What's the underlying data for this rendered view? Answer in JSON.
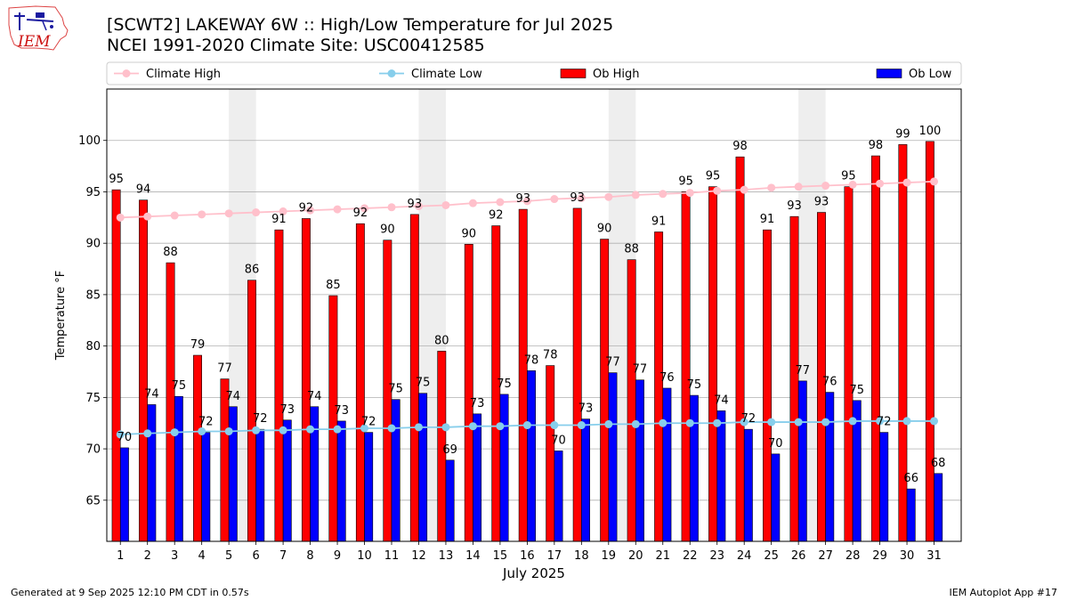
{
  "header": {
    "logo_text": "IEM",
    "title_line1": "[SCWT2] LAKEWAY 6W :: High/Low Temperature for Jul 2025",
    "title_line2": "NCEI 1991-2020 Climate Site: USC00412585"
  },
  "footer": {
    "generated": "Generated at 9 Sep 2025 12:10 PM CDT in 0.57s",
    "app": "IEM Autoplot App #17"
  },
  "chart_data": {
    "type": "bar",
    "xlabel": "July 2025",
    "ylabel": "Temperature °F",
    "ylim": [
      61,
      105
    ],
    "yticks": [
      65,
      70,
      75,
      80,
      85,
      90,
      95,
      100
    ],
    "grid": true,
    "legend_position": "top",
    "categories": [
      "1",
      "2",
      "3",
      "4",
      "5",
      "6",
      "7",
      "8",
      "9",
      "10",
      "11",
      "12",
      "13",
      "14",
      "15",
      "16",
      "17",
      "18",
      "19",
      "20",
      "21",
      "22",
      "23",
      "24",
      "25",
      "26",
      "27",
      "28",
      "29",
      "30",
      "31"
    ],
    "weekend_days": [
      5,
      6,
      12,
      13,
      19,
      20,
      26,
      27
    ],
    "series": [
      {
        "name": "Ob High",
        "kind": "bar",
        "color": "#ff0000",
        "values": [
          95,
          94,
          88,
          79,
          77,
          86,
          91,
          92,
          85,
          92,
          90,
          93,
          80,
          90,
          92,
          93,
          78,
          93,
          90,
          88,
          91,
          95,
          95,
          98,
          91,
          93,
          93,
          95,
          98,
          99,
          100
        ],
        "plotted": [
          95.2,
          94.2,
          88.1,
          79.1,
          76.8,
          86.4,
          91.3,
          92.4,
          84.9,
          91.9,
          90.3,
          92.8,
          79.5,
          89.9,
          91.7,
          93.3,
          78.1,
          93.4,
          90.4,
          88.4,
          91.1,
          95.0,
          95.5,
          98.4,
          91.3,
          92.6,
          93.0,
          95.5,
          98.5,
          99.6,
          99.9
        ]
      },
      {
        "name": "Ob Low",
        "kind": "bar",
        "color": "#0000ff",
        "values": [
          70,
          74,
          75,
          72,
          74,
          72,
          73,
          74,
          73,
          72,
          75,
          75,
          69,
          73,
          75,
          78,
          70,
          73,
          77,
          77,
          76,
          75,
          74,
          72,
          70,
          77,
          76,
          75,
          72,
          66,
          68
        ],
        "plotted": [
          70.1,
          74.3,
          75.1,
          71.6,
          74.1,
          71.9,
          72.8,
          74.1,
          72.7,
          71.6,
          74.8,
          75.4,
          68.9,
          73.4,
          75.3,
          77.6,
          69.8,
          72.9,
          77.4,
          76.7,
          75.9,
          75.2,
          73.7,
          71.9,
          69.5,
          76.6,
          75.5,
          74.7,
          71.6,
          66.1,
          67.6
        ]
      },
      {
        "name": "Climate High",
        "kind": "line",
        "color": "#ffc0cb",
        "values": [
          92.5,
          92.6,
          92.7,
          92.8,
          92.9,
          93.0,
          93.1,
          93.2,
          93.3,
          93.4,
          93.5,
          93.6,
          93.7,
          93.9,
          94.0,
          94.1,
          94.3,
          94.4,
          94.5,
          94.7,
          94.8,
          94.9,
          95.1,
          95.2,
          95.4,
          95.5,
          95.6,
          95.7,
          95.8,
          95.9,
          96.0
        ]
      },
      {
        "name": "Climate Low",
        "kind": "line",
        "color": "#87ceeb",
        "values": [
          71.4,
          71.5,
          71.6,
          71.7,
          71.7,
          71.8,
          71.8,
          71.9,
          71.9,
          72.0,
          72.0,
          72.1,
          72.1,
          72.2,
          72.2,
          72.3,
          72.3,
          72.3,
          72.4,
          72.4,
          72.5,
          72.5,
          72.5,
          72.6,
          72.6,
          72.6,
          72.6,
          72.7,
          72.7,
          72.7,
          72.7
        ]
      }
    ],
    "legend_order": [
      "Climate High",
      "Climate Low",
      "Ob High",
      "Ob Low"
    ]
  }
}
